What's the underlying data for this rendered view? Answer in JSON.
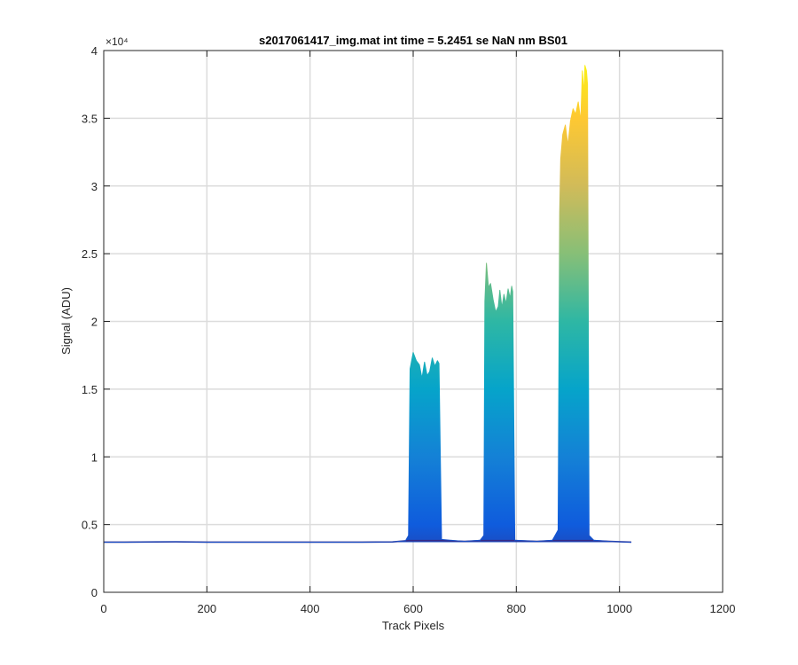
{
  "chart_data": {
    "type": "area",
    "title": "s2017061417_img.mat int time = 5.2451 se  NaN nm BS01",
    "xlabel": "Track Pixels",
    "ylabel": "Signal (ADU)",
    "y_exponent_label": "×10⁴",
    "xlim": [
      0,
      1200
    ],
    "ylim": [
      0,
      40000
    ],
    "x_ticks": [
      0,
      200,
      400,
      600,
      800,
      1000,
      1200
    ],
    "x_tick_labels": [
      "0",
      "200",
      "400",
      "600",
      "800",
      "1000",
      "1200"
    ],
    "y_ticks": [
      0,
      5000,
      10000,
      15000,
      20000,
      25000,
      30000,
      35000,
      40000
    ],
    "y_tick_labels": [
      "0",
      "0.5",
      "1",
      "1.5",
      "2",
      "2.5",
      "3",
      "3.5",
      "4"
    ],
    "grid": true,
    "colormap": "parula",
    "colormap_stops": [
      "#352a87",
      "#0f5cdd",
      "#1481d6",
      "#06a4ca",
      "#2eb7a4",
      "#87bf77",
      "#d1bb59",
      "#fec832",
      "#f9fb0e"
    ],
    "baseline": 3700,
    "x_extent": [
      0,
      1023
    ],
    "series": [
      {
        "values_x": [
          0,
          40,
          100,
          140,
          200,
          300,
          400,
          500,
          560,
          585,
          591,
          594,
          600,
          606,
          612,
          617,
          622,
          627,
          632,
          637,
          642,
          647,
          650,
          655,
          700,
          730,
          737,
          739,
          742,
          746,
          750,
          755,
          760,
          765,
          768,
          772,
          776,
          780,
          784,
          788,
          791,
          793,
          797,
          840,
          870,
          881,
          884,
          886,
          890,
          895,
          900,
          905,
          910,
          915,
          920,
          925,
          928,
          931,
          933,
          936,
          938,
          941,
          950,
          980,
          1023
        ],
        "values_y": [
          3700,
          3700,
          3720,
          3730,
          3700,
          3700,
          3700,
          3700,
          3720,
          3800,
          4200,
          16500,
          17700,
          17100,
          16800,
          15800,
          17000,
          16000,
          16300,
          17300,
          16700,
          17100,
          16900,
          3900,
          3760,
          3850,
          4200,
          21500,
          24300,
          22500,
          22800,
          21600,
          20700,
          21100,
          22300,
          21000,
          22000,
          21300,
          22400,
          21700,
          22600,
          22200,
          3850,
          3760,
          3850,
          4600,
          28000,
          32000,
          33800,
          34500,
          33000,
          34800,
          35700,
          35300,
          36200,
          34800,
          38500,
          36800,
          38900,
          38500,
          37500,
          4200,
          3850,
          3760,
          3700
        ]
      }
    ]
  }
}
